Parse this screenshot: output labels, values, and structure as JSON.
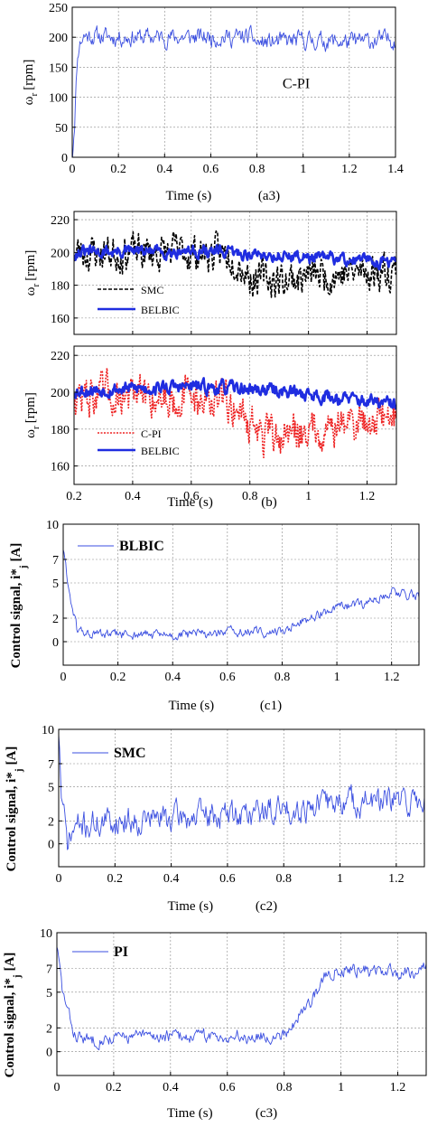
{
  "colors": {
    "blue_thin": "#3b4fe0",
    "blue_thick": "#1f2de0",
    "black": "#000000",
    "red": "#ee2222",
    "grid": "#888888"
  },
  "chart_data": [
    {
      "id": "a3",
      "type": "line",
      "xlabel": "Time (s)",
      "tag": "(a3)",
      "ylabel": "ω_r [rpm]",
      "annotation": "C-PI",
      "xlim": [
        0,
        1.4
      ],
      "ylim": [
        0,
        250
      ],
      "xticks": [
        0,
        0.2,
        0.4,
        0.6,
        0.8,
        1,
        1.2,
        1.4
      ],
      "yticks": [
        0,
        50,
        100,
        150,
        200,
        250
      ],
      "grid": true,
      "series": [
        {
          "color": "#3b4fe0",
          "width": 0.9,
          "dash": "",
          "noise": 12,
          "seed": 11,
          "points": [
            [
              0,
              0
            ],
            [
              0.01,
              60
            ],
            [
              0.02,
              150
            ],
            [
              0.03,
              190
            ],
            [
              0.05,
              203
            ],
            [
              0.2,
              200
            ],
            [
              0.4,
              200
            ],
            [
              0.6,
              200
            ],
            [
              0.78,
              200
            ],
            [
              0.8,
              190
            ],
            [
              1.0,
              195
            ],
            [
              1.2,
              192
            ],
            [
              1.4,
              197
            ]
          ]
        }
      ]
    },
    {
      "id": "b1",
      "type": "line",
      "xlabel": "",
      "tag": "",
      "ylabel": "ω_r [rpm]",
      "xlim": [
        0.2,
        1.3
      ],
      "ylim": [
        150,
        225
      ],
      "xticks": [
        0.2,
        0.4,
        0.6,
        0.8,
        1.0,
        1.2
      ],
      "yticks": [
        160,
        180,
        200,
        220
      ],
      "grid": true,
      "legend": {
        "position": "bottom-left"
      },
      "series": [
        {
          "name": "SMC",
          "color": "#000000",
          "width": 1.6,
          "dash": "4 2",
          "noise": 9,
          "seed": 23,
          "points": [
            [
              0.2,
              200
            ],
            [
              0.4,
              200
            ],
            [
              0.6,
              200
            ],
            [
              0.75,
              198
            ],
            [
              0.8,
              185
            ],
            [
              0.9,
              183
            ],
            [
              1.0,
              186
            ],
            [
              1.2,
              188
            ],
            [
              1.3,
              190
            ]
          ]
        },
        {
          "name": "BELBIC",
          "color": "#1f2de0",
          "width": 2.6,
          "dash": "",
          "noise": 3,
          "seed": 31,
          "points": [
            [
              0.2,
              200
            ],
            [
              0.6,
              201
            ],
            [
              0.9,
              198
            ],
            [
              1.1,
              196
            ],
            [
              1.3,
              194
            ]
          ]
        }
      ]
    },
    {
      "id": "b2",
      "type": "line",
      "xlabel": "Time (s)",
      "tag": "(b)",
      "ylabel": "ω_r [rpm]",
      "xlim": [
        0.2,
        1.3
      ],
      "ylim": [
        150,
        225
      ],
      "xticks": [
        0.2,
        0.4,
        0.6,
        0.8,
        1.0,
        1.2
      ],
      "xticklabels": [
        "0.2",
        "0.4",
        "0.6",
        "0.8",
        "1",
        "1.2"
      ],
      "yticks": [
        160,
        180,
        200,
        220
      ],
      "grid": true,
      "legend": {
        "position": "bottom-left"
      },
      "series": [
        {
          "name": "C-PI",
          "color": "#ee2222",
          "width": 1.6,
          "dash": "2 1.5",
          "noise": 9,
          "seed": 47,
          "points": [
            [
              0.2,
              198
            ],
            [
              0.6,
              198
            ],
            [
              0.75,
              193
            ],
            [
              0.85,
              175
            ],
            [
              0.9,
              176
            ],
            [
              1.0,
              180
            ],
            [
              1.1,
              182
            ],
            [
              1.3,
              188
            ]
          ]
        },
        {
          "name": "BELBIC",
          "color": "#1f2de0",
          "width": 2.6,
          "dash": "",
          "noise": 3,
          "seed": 53,
          "points": [
            [
              0.2,
              201
            ],
            [
              0.6,
              203
            ],
            [
              0.9,
              201
            ],
            [
              1.1,
              197
            ],
            [
              1.3,
              193
            ]
          ]
        }
      ]
    },
    {
      "id": "c1",
      "type": "line",
      "xlabel": "Time (s)",
      "tag": "(c1)",
      "ylabel": "Control signal, i*",
      "ylabel_sub": "j",
      "ylabel_unit": "[A]",
      "xlim": [
        0,
        1.3
      ],
      "ylim": [
        -2,
        10
      ],
      "xticks": [
        0,
        0.2,
        0.4,
        0.6,
        0.8,
        1,
        1.2
      ],
      "yticks": [
        0,
        2,
        5,
        7,
        10
      ],
      "grid": true,
      "legend": {
        "position": "top-left"
      },
      "series": [
        {
          "name": "BLBIC",
          "color": "#3b4fe0",
          "width": 0.9,
          "dash": "",
          "noise": 0.35,
          "seed": 61,
          "points": [
            [
              0,
              8
            ],
            [
              0.02,
              4.5
            ],
            [
              0.05,
              1.0
            ],
            [
              0.1,
              0.6
            ],
            [
              0.3,
              0.6
            ],
            [
              0.4,
              0.5
            ],
            [
              0.6,
              0.8
            ],
            [
              0.8,
              0.8
            ],
            [
              0.85,
              1.6
            ],
            [
              1.0,
              2.8
            ],
            [
              1.1,
              3.2
            ],
            [
              1.2,
              4.3
            ],
            [
              1.3,
              3.9
            ]
          ]
        }
      ]
    },
    {
      "id": "c2",
      "type": "line",
      "xlabel": "Time (s)",
      "tag": "(c2)",
      "ylabel": "Control signal, i*",
      "ylabel_sub": "j",
      "ylabel_unit": "[A]",
      "xlim": [
        0,
        1.3
      ],
      "ylim": [
        -2,
        10
      ],
      "xticks": [
        0,
        0.2,
        0.4,
        0.6,
        0.8,
        1,
        1.2
      ],
      "yticks": [
        0,
        2,
        5,
        7,
        10
      ],
      "grid": true,
      "legend": {
        "position": "top-left"
      },
      "series": [
        {
          "name": "SMC",
          "color": "#3b4fe0",
          "width": 0.9,
          "dash": "",
          "noise": 1.0,
          "seed": 71,
          "points": [
            [
              0,
              10
            ],
            [
              0.01,
              4
            ],
            [
              0.03,
              0
            ],
            [
              0.06,
              1.5
            ],
            [
              0.2,
              2.0
            ],
            [
              0.4,
              2.3
            ],
            [
              0.6,
              2.5
            ],
            [
              0.8,
              3.0
            ],
            [
              1.0,
              3.7
            ],
            [
              1.2,
              3.6
            ],
            [
              1.3,
              3.8
            ]
          ]
        }
      ]
    },
    {
      "id": "c3",
      "type": "line",
      "xlabel": "Time (s)",
      "tag": "(c3)",
      "ylabel": "Control signal, i*",
      "ylabel_sub": "j",
      "ylabel_unit": "[A]",
      "xlim": [
        0,
        1.3
      ],
      "ylim": [
        -2,
        10
      ],
      "xticks": [
        0,
        0.2,
        0.4,
        0.6,
        0.8,
        1,
        1.2
      ],
      "yticks": [
        0,
        2,
        5,
        7,
        10
      ],
      "grid": true,
      "legend": {
        "position": "top-left"
      },
      "series": [
        {
          "name": "PI",
          "color": "#3b4fe0",
          "width": 0.9,
          "dash": "",
          "noise": 0.45,
          "seed": 83,
          "points": [
            [
              0,
              9
            ],
            [
              0.02,
              5
            ],
            [
              0.06,
              1.5
            ],
            [
              0.1,
              1.0
            ],
            [
              0.3,
              1.3
            ],
            [
              0.5,
              1.3
            ],
            [
              0.78,
              1.3
            ],
            [
              0.82,
              2.0
            ],
            [
              0.9,
              4.5
            ],
            [
              0.95,
              6.5
            ],
            [
              1.0,
              7.0
            ],
            [
              1.1,
              6.8
            ],
            [
              1.2,
              6.6
            ],
            [
              1.3,
              7.0
            ]
          ]
        }
      ]
    }
  ]
}
